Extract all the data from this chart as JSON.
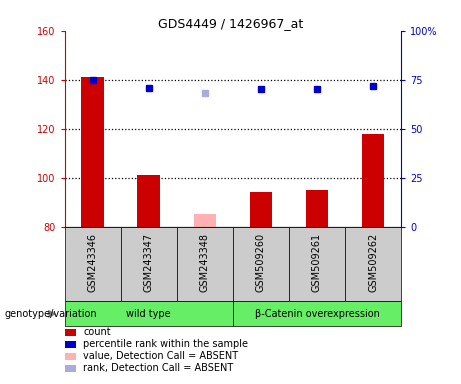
{
  "title": "GDS4449 / 1426967_at",
  "samples": [
    "GSM243346",
    "GSM243347",
    "GSM243348",
    "GSM509260",
    "GSM509261",
    "GSM509262"
  ],
  "bar_heights": [
    141,
    101,
    85,
    94,
    95,
    118
  ],
  "bar_colors": [
    "#cc0000",
    "#cc0000",
    "#ffb0b0",
    "#cc0000",
    "#cc0000",
    "#cc0000"
  ],
  "rank_values": [
    75,
    71,
    68,
    70,
    70,
    72
  ],
  "rank_colors": [
    "#0000cc",
    "#0000cc",
    "#aaaadd",
    "#0000cc",
    "#0000cc",
    "#0000cc"
  ],
  "absent_flags": [
    false,
    false,
    true,
    false,
    false,
    false
  ],
  "ylim_left": [
    80,
    160
  ],
  "ylim_right": [
    0,
    100
  ],
  "yticks_left": [
    80,
    100,
    120,
    140,
    160
  ],
  "yticks_right": [
    0,
    25,
    50,
    75,
    100
  ],
  "ytick_labels_right": [
    "0",
    "25",
    "50",
    "75",
    "100%"
  ],
  "left_axis_color": "#cc0000",
  "right_axis_color": "#0000cc",
  "gridline_color": "#000000",
  "gridline_values": [
    100,
    120,
    140
  ],
  "group_data": [
    {
      "name": "wild type",
      "start": 0,
      "end": 2
    },
    {
      "name": "β-Catenin overexpression",
      "start": 3,
      "end": 5
    }
  ],
  "group_bg_color": "#66ee66",
  "sample_bg_color": "#cccccc",
  "legend_items": [
    {
      "label": "count",
      "color": "#cc0000"
    },
    {
      "label": "percentile rank within the sample",
      "color": "#0000cc"
    },
    {
      "label": "value, Detection Call = ABSENT",
      "color": "#ffb0b0"
    },
    {
      "label": "rank, Detection Call = ABSENT",
      "color": "#aaaadd"
    }
  ],
  "bar_width": 0.4,
  "marker_size": 5,
  "title_fontsize": 9,
  "axis_fontsize": 7,
  "label_fontsize": 7,
  "legend_fontsize": 7
}
